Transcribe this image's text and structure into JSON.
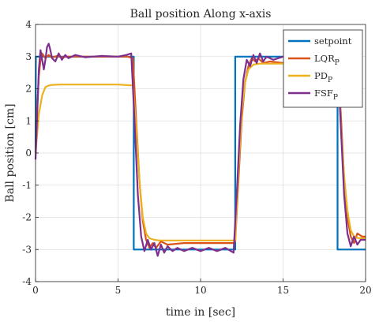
{
  "chart_data": {
    "type": "line",
    "title": "Ball position Along x-axis",
    "xlabel": "time in [sec]",
    "ylabel": "Ball position [cm]",
    "xlim": [
      0,
      20
    ],
    "ylim": [
      -4,
      4
    ],
    "xticks": [
      0,
      5,
      10,
      15,
      20
    ],
    "yticks": [
      -4,
      -3,
      -2,
      -1,
      0,
      1,
      2,
      3,
      4
    ],
    "grid": true,
    "legend_position": "top-right",
    "series": [
      {
        "name": "setpoint",
        "color": "#0072BD",
        "x": [
          0,
          0.02,
          5.95,
          5.95,
          12.1,
          12.1,
          18.3,
          18.3,
          20
        ],
        "y": [
          0,
          3,
          3,
          -3,
          -3,
          3,
          3,
          -3,
          -3
        ]
      },
      {
        "name": "LQR",
        "subscript": "P",
        "color": "#D95319",
        "x": [
          0,
          0.1,
          0.2,
          0.3,
          0.4,
          0.6,
          0.8,
          1.0,
          1.3,
          1.6,
          2.0,
          3.0,
          4.0,
          5.0,
          5.6,
          5.9,
          6.1,
          6.3,
          6.5,
          6.7,
          6.9,
          7.1,
          7.3,
          7.6,
          8.0,
          9.0,
          10.0,
          11.0,
          12.0,
          12.1,
          12.3,
          12.5,
          12.7,
          12.9,
          13.1,
          13.3,
          13.5,
          13.8,
          14.2,
          15.0,
          16.0,
          17.0,
          18.0,
          18.3,
          18.5,
          18.7,
          18.9,
          19.1,
          19.3,
          19.5,
          19.8,
          20.0
        ],
        "y": [
          0,
          1.4,
          2.4,
          2.9,
          3.1,
          2.95,
          3.05,
          2.97,
          3.02,
          2.98,
          3.0,
          3.0,
          3.0,
          3.0,
          3.0,
          2.95,
          1.0,
          -0.9,
          -2.1,
          -2.7,
          -2.95,
          -2.8,
          -2.95,
          -2.75,
          -2.85,
          -2.8,
          -2.8,
          -2.8,
          -2.8,
          -2.75,
          -0.8,
          1.1,
          2.2,
          2.7,
          2.95,
          2.85,
          2.95,
          2.8,
          2.85,
          2.8,
          2.8,
          2.85,
          2.85,
          2.85,
          1.2,
          -0.8,
          -2.0,
          -2.6,
          -2.8,
          -2.5,
          -2.6,
          -2.6
        ]
      },
      {
        "name": "PD",
        "subscript": "P",
        "color": "#EDB120",
        "x": [
          0,
          0.2,
          0.4,
          0.6,
          0.8,
          1.0,
          1.5,
          2.0,
          3.0,
          4.0,
          5.0,
          5.9,
          6.1,
          6.3,
          6.5,
          6.7,
          6.9,
          7.2,
          7.5,
          8.0,
          9.0,
          10.0,
          11.0,
          12.0,
          12.1,
          12.3,
          12.5,
          12.7,
          12.9,
          13.2,
          13.6,
          14.0,
          15.0,
          16.0,
          17.0,
          18.0,
          18.3,
          18.5,
          18.7,
          18.9,
          19.1,
          19.3,
          19.6,
          20.0
        ],
        "y": [
          0,
          1.2,
          1.8,
          2.05,
          2.1,
          2.12,
          2.13,
          2.13,
          2.13,
          2.13,
          2.13,
          2.1,
          0.8,
          -0.9,
          -2.0,
          -2.5,
          -2.65,
          -2.7,
          -2.72,
          -2.72,
          -2.72,
          -2.72,
          -2.72,
          -2.72,
          -2.7,
          -0.5,
          1.3,
          2.2,
          2.6,
          2.75,
          2.78,
          2.78,
          2.78,
          2.78,
          2.78,
          2.78,
          2.75,
          0.9,
          -0.7,
          -1.8,
          -2.4,
          -2.6,
          -2.65,
          -2.65
        ]
      },
      {
        "name": "FSF",
        "subscript": "P",
        "color": "#7E2F8E",
        "x": [
          0,
          0.1,
          0.2,
          0.3,
          0.4,
          0.5,
          0.6,
          0.7,
          0.8,
          0.9,
          1.0,
          1.2,
          1.4,
          1.6,
          1.8,
          2.0,
          2.4,
          3.0,
          4.0,
          5.0,
          5.5,
          5.8,
          6.0,
          6.2,
          6.4,
          6.6,
          6.8,
          7.0,
          7.2,
          7.4,
          7.6,
          7.8,
          8.0,
          8.3,
          8.6,
          9.0,
          9.5,
          10.0,
          10.5,
          11.0,
          11.5,
          12.0,
          12.2,
          12.4,
          12.6,
          12.8,
          13.0,
          13.2,
          13.4,
          13.6,
          13.8,
          14.0,
          14.4,
          15.0,
          16.0,
          17.0,
          18.0,
          18.3,
          18.5,
          18.7,
          18.9,
          19.1,
          19.3,
          19.5,
          19.7,
          20.0
        ],
        "y": [
          -0.2,
          1.2,
          2.6,
          3.2,
          2.9,
          2.6,
          2.9,
          3.3,
          3.4,
          3.2,
          2.95,
          2.85,
          3.1,
          2.9,
          3.05,
          2.95,
          3.05,
          2.98,
          3.02,
          3.0,
          3.05,
          3.1,
          1.0,
          -1.3,
          -2.6,
          -3.05,
          -2.7,
          -3.0,
          -2.8,
          -3.2,
          -2.85,
          -3.1,
          -2.9,
          -3.05,
          -2.95,
          -3.05,
          -2.95,
          -3.05,
          -2.95,
          -3.05,
          -2.95,
          -3.1,
          -1.2,
          0.9,
          2.3,
          2.9,
          2.7,
          3.05,
          2.8,
          3.1,
          2.85,
          3.0,
          2.9,
          3.0,
          2.95,
          2.95,
          2.95,
          2.95,
          0.8,
          -1.3,
          -2.5,
          -2.9,
          -2.6,
          -2.85,
          -2.7,
          -2.7
        ]
      }
    ]
  }
}
